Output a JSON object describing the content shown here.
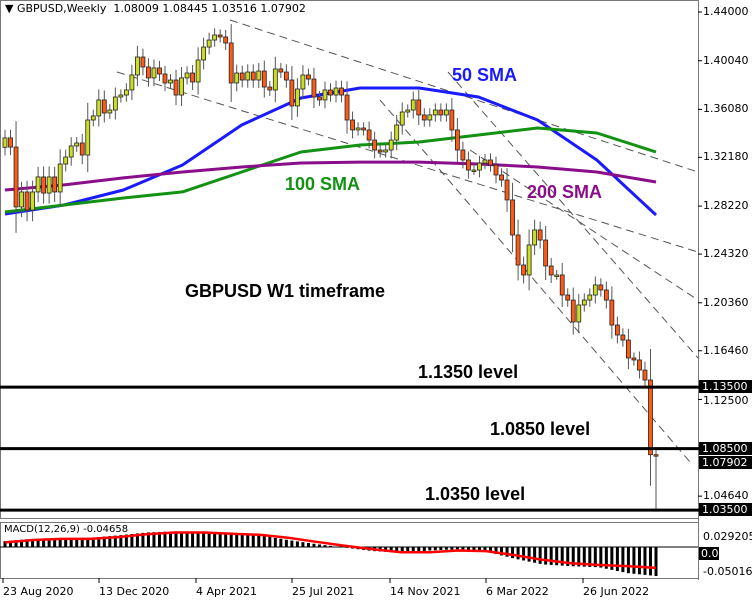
{
  "header": {
    "symbol_timeframe": "GBPUSD,Weekly",
    "open": "1.08009",
    "high": "1.08445",
    "low": "1.03516",
    "close": "1.07902"
  },
  "annotations": {
    "sma50": "50 SMA",
    "sma100": "100 SMA",
    "sma200": "200 SMA",
    "timeframe": "GBPUSD W1 timeframe",
    "level_1135": "1.1350 level",
    "level_1085": "1.0850 level",
    "level_1035": "1.0350 level"
  },
  "colors": {
    "bull": "#ccdd22",
    "bear": "#ff5a14",
    "sma50": "#1a1aff",
    "sma100": "#139113",
    "sma200": "#8a0e8a",
    "macd_signal": "#ff0000",
    "macd_hist": "#000000"
  },
  "chart_data": {
    "type": "candlestick",
    "title": "GBPUSD,Weekly",
    "ylim": [
      1.034,
      1.445
    ],
    "y_ticks": [
      "1.44000",
      "1.40040",
      "1.36080",
      "1.32180",
      "1.28220",
      "1.24320",
      "1.20360",
      "1.16460",
      "1.12500",
      "1.08500",
      "1.04640"
    ],
    "x_ticks": [
      "23 Aug 2020",
      "13 Dec 2020",
      "4 Apr 2021",
      "25 Jul 2021",
      "14 Nov 2021",
      "6 Mar 2022",
      "26 Jun 2022"
    ],
    "first_open": 1.33,
    "closes": [
      1.3376,
      1.3302,
      1.2815,
      1.2937,
      1.279,
      1.2937,
      1.3059,
      1.2928,
      1.3059,
      1.2937,
      1.3164,
      1.3221,
      1.3311,
      1.3335,
      1.3237,
      1.3522,
      1.3555,
      1.3685,
      1.3579,
      1.3603,
      1.3709,
      1.3725,
      1.3766,
      1.3888,
      1.4034,
      1.3953,
      1.3864,
      1.3945,
      1.3896,
      1.3823,
      1.3847,
      1.3725,
      1.3864,
      1.3904,
      1.3831,
      1.401,
      1.4115,
      1.4172,
      1.4213,
      1.4197,
      1.4148,
      1.3823,
      1.3904,
      1.3847,
      1.3912,
      1.3847,
      1.392,
      1.379,
      1.3766,
      1.3937,
      1.3912,
      1.3847,
      1.3636,
      1.3774,
      1.3888,
      1.3855,
      1.3709,
      1.3685,
      1.3766,
      1.3725,
      1.3782,
      1.3725,
      1.3522,
      1.3441,
      1.3457,
      1.3441,
      1.3359,
      1.3278,
      1.3262,
      1.3278,
      1.3359,
      1.3481,
      1.3587,
      1.3603,
      1.3685,
      1.3563,
      1.3522,
      1.3563,
      1.3603,
      1.3563,
      1.3603,
      1.3441,
      1.3278,
      1.3197,
      1.3115,
      1.3115,
      1.3172,
      1.3197,
      1.3156,
      1.3075,
      1.3034,
      1.2872,
      1.2587,
      1.2343,
      1.2262,
      1.2506,
      1.2628,
      1.2546,
      1.2335,
      1.2262,
      1.2262,
      1.2099,
      1.2058,
      1.188,
      1.2018,
      1.2058,
      1.2099,
      1.2181,
      1.214,
      1.2058,
      1.1855,
      1.1774,
      1.1733,
      1.1587,
      1.1571,
      1.1489,
      1.1408,
      1.08009,
      1.07902
    ],
    "last_candle": {
      "open": 1.08009,
      "high": 1.08445,
      "low": 1.03516,
      "close": 1.07902
    },
    "sma": [
      {
        "name": "50 SMA",
        "values": [
          1.2758,
          1.2831,
          1.2953,
          1.3156,
          1.3481,
          1.3701,
          1.3782,
          1.3782,
          1.3709,
          1.3522,
          1.3197,
          1.275
        ]
      },
      {
        "name": "100 SMA",
        "values": [
          1.2774,
          1.2831,
          1.2888,
          1.2937,
          1.3099,
          1.3262,
          1.3319,
          1.3343,
          1.34,
          1.3457,
          1.3416,
          1.3262
        ]
      },
      {
        "name": "200 SMA",
        "values": [
          1.2953,
          1.2994,
          1.3051,
          1.3099,
          1.314,
          1.3172,
          1.318,
          1.318,
          1.3164,
          1.314,
          1.3099,
          1.3018
        ]
      }
    ],
    "levels": [
      {
        "label": "1.13500",
        "value": 1.135
      },
      {
        "label": "1.08500",
        "value": 1.085
      },
      {
        "label": "1.03500",
        "value": 1.035
      }
    ],
    "last_price_label": "1.07902",
    "macd": {
      "label": "MACD(12,26,9) -0.04658",
      "y_ticks": [
        "0.029205",
        "0.00",
        "-0.050166"
      ],
      "histogram": [
        0.01,
        0.014,
        0.015,
        0.016,
        0.02,
        0.025,
        0.027,
        0.024,
        0.022,
        0.02,
        0.012,
        0.005,
        -0.001,
        -0.007,
        -0.01,
        -0.006,
        -0.004,
        -0.008,
        -0.02,
        -0.03,
        -0.033,
        -0.035,
        -0.045,
        -0.05
      ],
      "signal": [
        0.008,
        0.012,
        0.014,
        0.014,
        0.017,
        0.022,
        0.025,
        0.025,
        0.023,
        0.021,
        0.016,
        0.009,
        0.002,
        -0.004,
        -0.009,
        -0.009,
        -0.006,
        -0.007,
        -0.014,
        -0.022,
        -0.028,
        -0.031,
        -0.033,
        -0.036
      ]
    }
  }
}
